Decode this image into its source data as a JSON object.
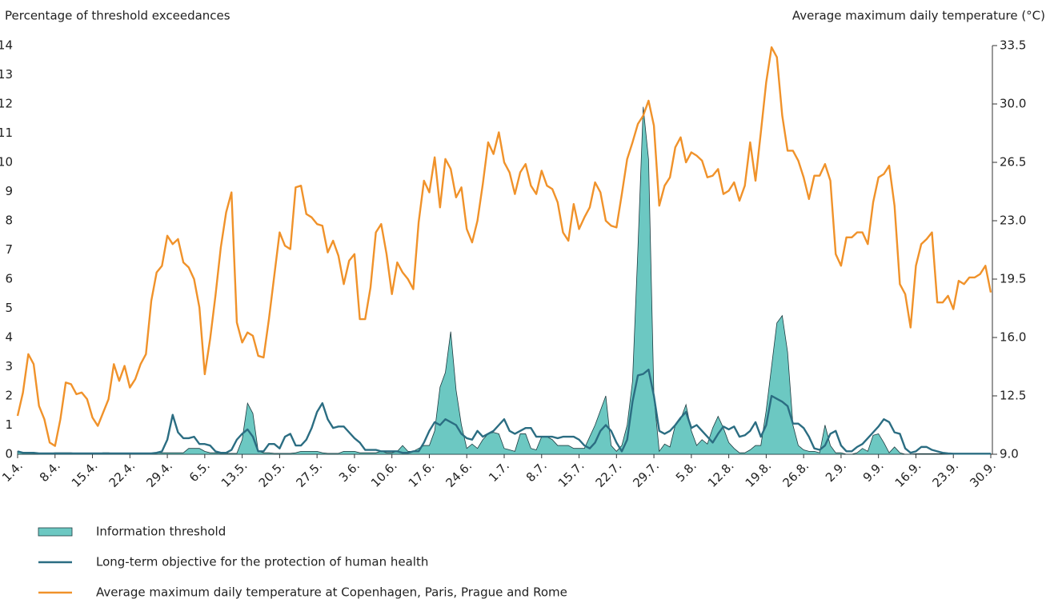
{
  "chart_data": {
    "type": "line",
    "y_label": "Percentage of threshold exceedances",
    "y2_label": "Average maximum daily temperature (°C)",
    "ylim": [
      0,
      14
    ],
    "yticks": [
      0,
      1,
      2,
      3,
      4,
      5,
      6,
      7,
      8,
      9,
      10,
      11,
      12,
      13,
      14
    ],
    "y2lim": [
      9,
      33.5
    ],
    "y2ticks": [
      {
        "value": 9,
        "label": "9.0"
      },
      12.5,
      {
        "value": 16,
        "label": "16.0"
      },
      19.5,
      {
        "value": 23,
        "label": "23.0"
      },
      26.5,
      {
        "value": 30,
        "label": "30.0"
      },
      33.5
    ],
    "legend": "bottom",
    "grid": false,
    "categories": [
      "1.4.",
      null,
      null,
      null,
      null,
      null,
      null,
      "8.4.",
      null,
      null,
      null,
      null,
      null,
      null,
      "15.4.",
      null,
      null,
      null,
      null,
      null,
      null,
      "22.4.",
      null,
      null,
      null,
      null,
      null,
      null,
      "29.4.",
      null,
      null,
      null,
      null,
      null,
      null,
      "6.5.",
      null,
      null,
      null,
      null,
      null,
      null,
      "13.5.",
      null,
      null,
      null,
      null,
      null,
      null,
      "20.5.",
      null,
      null,
      null,
      null,
      null,
      null,
      "27.5.",
      null,
      null,
      null,
      null,
      null,
      null,
      "3.6.",
      null,
      null,
      null,
      null,
      null,
      null,
      "10.6.",
      null,
      null,
      null,
      null,
      null,
      null,
      "17.6.",
      null,
      null,
      null,
      null,
      null,
      null,
      "24.6.",
      null,
      null,
      null,
      null,
      null,
      null,
      "1.7.",
      null,
      null,
      null,
      null,
      null,
      null,
      "8.7.",
      null,
      null,
      null,
      null,
      null,
      null,
      "15.7.",
      null,
      null,
      null,
      null,
      null,
      null,
      "22.7.",
      null,
      null,
      null,
      null,
      null,
      null,
      "29.7.",
      null,
      null,
      null,
      null,
      null,
      null,
      "5.8.",
      null,
      null,
      null,
      null,
      null,
      null,
      "12.8.",
      null,
      null,
      null,
      null,
      null,
      null,
      "19.8.",
      null,
      null,
      null,
      null,
      null,
      null,
      "26.8.",
      null,
      null,
      null,
      null,
      null,
      null,
      "2.9.",
      null,
      null,
      null,
      null,
      null,
      null,
      "9.9.",
      null,
      null,
      null,
      null,
      null,
      null,
      "16.9.",
      null,
      null,
      null,
      null,
      null,
      null,
      "23.9.",
      null,
      null,
      null,
      null,
      null,
      null,
      "30.9."
    ],
    "series": [
      {
        "name": "Information threshold",
        "type": "area",
        "color": "#6cc8c2",
        "values": [
          0.1,
          0.05,
          0.05,
          0.03,
          0.03,
          0.03,
          0.03,
          0.05,
          0.05,
          0.05,
          0.05,
          0.03,
          0.03,
          0.03,
          0.03,
          0.03,
          0.05,
          0.05,
          0.03,
          0.03,
          0.03,
          0.03,
          0.03,
          0.03,
          0.03,
          0.03,
          0.05,
          0.05,
          0.05,
          0.05,
          0.05,
          0.05,
          0.2,
          0.2,
          0.2,
          0.1,
          0.05,
          0.05,
          0.03,
          0.03,
          0.03,
          0.03,
          0.5,
          1.75,
          1.4,
          0.1,
          0.05,
          0.05,
          0.03,
          0.03,
          0.03,
          0.03,
          0.05,
          0.1,
          0.1,
          0.1,
          0.1,
          0.05,
          0.03,
          0.03,
          0.03,
          0.1,
          0.1,
          0.1,
          0.05,
          0.05,
          0.05,
          0.05,
          0.1,
          0.05,
          0.05,
          0.1,
          0.3,
          0.1,
          0.1,
          0.2,
          0.3,
          0.3,
          0.8,
          2.3,
          2.8,
          4.2,
          2.2,
          1.0,
          0.2,
          0.35,
          0.2,
          0.5,
          0.7,
          0.75,
          0.7,
          0.2,
          0.15,
          0.1,
          0.7,
          0.7,
          0.2,
          0.15,
          0.6,
          0.6,
          0.5,
          0.3,
          0.3,
          0.3,
          0.2,
          0.2,
          0.2,
          0.6,
          1.0,
          1.5,
          2.0,
          0.3,
          0.1,
          0.3,
          1.0,
          2.5,
          7.0,
          11.9,
          10.1,
          2.0,
          0.1,
          0.35,
          0.25,
          1.0,
          1.2,
          1.7,
          0.8,
          0.3,
          0.5,
          0.35,
          0.9,
          1.3,
          0.9,
          0.4,
          0.2,
          0.05,
          0.05,
          0.15,
          0.3,
          0.3,
          1.5,
          3.0,
          4.5,
          4.75,
          3.5,
          1.0,
          0.3,
          0.15,
          0.1,
          0.1,
          0.05,
          1.0,
          0.3,
          0.05,
          0.05,
          0,
          0,
          0.05,
          0.2,
          0.1,
          0.65,
          0.7,
          0.4,
          0.05,
          0.25,
          0.05,
          0,
          0,
          0.02,
          0.02,
          0.02,
          0.02,
          0.02,
          0.02,
          0.02,
          0.02,
          0.02,
          0.02,
          0.02,
          0.02,
          0.02,
          0.02,
          0.02
        ]
      },
      {
        "name": "Long-term objective for the protection of human health",
        "type": "line",
        "color": "#2b6d82",
        "values": [
          0.1,
          0.05,
          0.05,
          0.05,
          0.03,
          0.03,
          0.03,
          0.03,
          0.03,
          0.03,
          0.03,
          0.03,
          0.03,
          0.03,
          0.03,
          0.03,
          0.03,
          0.03,
          0.03,
          0.03,
          0.03,
          0.03,
          0.03,
          0.03,
          0.03,
          0.03,
          0.05,
          0.1,
          0.5,
          1.35,
          0.75,
          0.55,
          0.55,
          0.6,
          0.35,
          0.35,
          0.3,
          0.1,
          0.05,
          0.05,
          0.15,
          0.5,
          0.7,
          0.85,
          0.6,
          0.1,
          0.1,
          0.35,
          0.35,
          0.2,
          0.6,
          0.7,
          0.3,
          0.3,
          0.5,
          0.9,
          1.45,
          1.75,
          1.2,
          0.9,
          0.95,
          0.95,
          0.75,
          0.55,
          0.4,
          0.15,
          0.15,
          0.15,
          0.1,
          0.1,
          0.1,
          0.1,
          0.05,
          0.05,
          0.1,
          0.1,
          0.4,
          0.8,
          1.1,
          1.0,
          1.2,
          1.1,
          1.0,
          0.7,
          0.55,
          0.5,
          0.8,
          0.6,
          0.7,
          0.8,
          1.0,
          1.2,
          0.8,
          0.7,
          0.8,
          0.9,
          0.9,
          0.6,
          0.6,
          0.6,
          0.6,
          0.55,
          0.6,
          0.6,
          0.6,
          0.5,
          0.3,
          0.2,
          0.4,
          0.8,
          1.0,
          0.8,
          0.4,
          0.1,
          0.5,
          1.8,
          2.7,
          2.75,
          2.9,
          2.0,
          0.8,
          0.7,
          0.8,
          1.0,
          1.25,
          1.45,
          0.9,
          1.0,
          0.8,
          0.6,
          0.4,
          0.7,
          0.95,
          0.85,
          0.95,
          0.6,
          0.65,
          0.8,
          1.1,
          0.6,
          1.0,
          2.0,
          1.9,
          1.8,
          1.65,
          1.05,
          1.05,
          0.9,
          0.6,
          0.2,
          0.15,
          0.3,
          0.7,
          0.8,
          0.3,
          0.1,
          0.1,
          0.25,
          0.35,
          0.55,
          0.75,
          0.95,
          1.2,
          1.1,
          0.75,
          0.7,
          0.2,
          0.05,
          0.1,
          0.25,
          0.25,
          0.15,
          0.1,
          0.05,
          0.03,
          0.02,
          0.02,
          0.02,
          0.02,
          0.02,
          0.02,
          0.02,
          0.02
        ]
      },
      {
        "name": "Average maximum daily temperature at Copenhagen, Paris, Prague and Rome",
        "type": "line",
        "axis": "y2",
        "color": "#f0922a",
        "values": [
          11.3,
          12.7,
          15.0,
          14.4,
          11.9,
          11.1,
          9.7,
          9.5,
          11.1,
          13.3,
          13.2,
          12.6,
          12.7,
          12.3,
          11.2,
          10.7,
          11.5,
          12.3,
          14.4,
          13.4,
          14.3,
          13.0,
          13.5,
          14.4,
          15.0,
          18.2,
          19.9,
          20.3,
          22.1,
          21.6,
          21.9,
          20.5,
          20.2,
          19.5,
          17.8,
          13.8,
          15.9,
          18.5,
          21.4,
          23.5,
          24.7,
          16.9,
          15.7,
          16.3,
          16.1,
          14.9,
          14.8,
          17.1,
          19.7,
          22.3,
          21.5,
          21.3,
          25.0,
          25.1,
          23.4,
          23.2,
          22.8,
          22.7,
          21.1,
          21.8,
          20.9,
          19.2,
          20.6,
          21.0,
          17.1,
          17.1,
          19.0,
          22.3,
          22.8,
          21.0,
          18.6,
          20.5,
          19.9,
          19.5,
          18.9,
          22.9,
          25.4,
          24.7,
          26.8,
          23.8,
          26.7,
          26.1,
          24.4,
          25.0,
          22.5,
          21.7,
          23.0,
          25.2,
          27.7,
          27.0,
          28.3,
          26.5,
          25.9,
          24.6,
          25.9,
          26.4,
          25.1,
          24.6,
          26.0,
          25.1,
          24.9,
          24.1,
          22.3,
          21.8,
          24.0,
          22.5,
          23.2,
          23.8,
          25.3,
          24.7,
          23.0,
          22.7,
          22.6,
          24.6,
          26.7,
          27.7,
          28.8,
          29.3,
          30.2,
          28.7,
          23.9,
          25.1,
          25.6,
          27.4,
          28.0,
          26.5,
          27.1,
          26.9,
          26.6,
          25.6,
          25.7,
          26.1,
          24.6,
          24.8,
          25.3,
          24.2,
          25.1,
          27.7,
          25.4,
          28.3,
          31.3,
          33.4,
          32.8,
          29.3,
          27.2,
          27.2,
          26.6,
          25.6,
          24.3,
          25.7,
          25.7,
          26.4,
          25.4,
          21.0,
          20.3,
          22.0,
          22.0,
          22.3,
          22.3,
          21.6,
          24.1,
          25.6,
          25.8,
          26.3,
          23.9,
          19.2,
          18.6,
          16.6,
          20.3,
          21.6,
          21.9,
          22.3,
          18.1,
          18.1,
          18.5,
          17.7,
          19.4,
          19.2,
          19.6,
          19.6,
          19.8,
          20.3,
          18.7
        ]
      }
    ]
  }
}
